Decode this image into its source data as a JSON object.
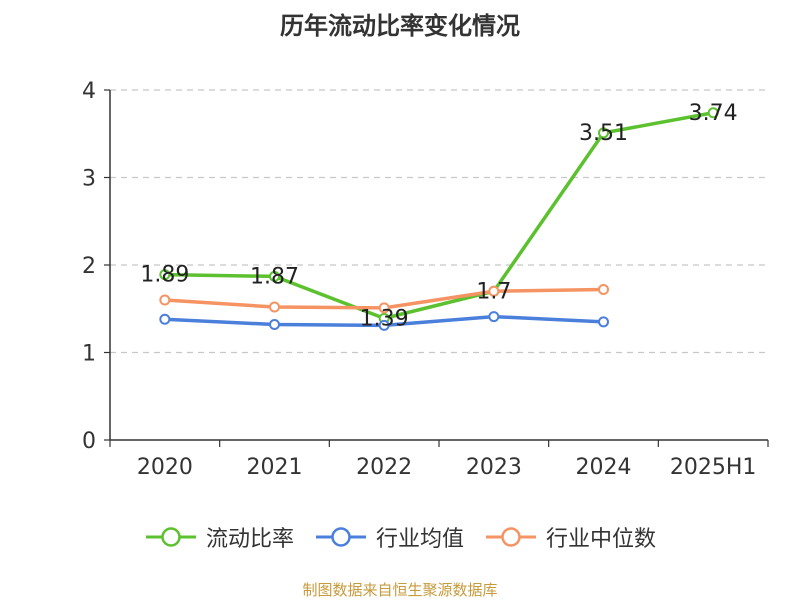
{
  "chart_data": {
    "type": "line",
    "title": "历年流动比率变化情况",
    "categories": [
      "2020",
      "2021",
      "2022",
      "2023",
      "2024",
      "2025H1"
    ],
    "ylim": [
      0,
      4
    ],
    "yticks": [
      "0",
      "1",
      "2",
      "3",
      "4"
    ],
    "grid": true,
    "legend_position": "bottom",
    "series": [
      {
        "name": "流动比率",
        "color": "#5cc12f",
        "values": [
          1.89,
          1.87,
          1.39,
          1.7,
          3.51,
          3.74
        ],
        "labels": [
          "1.89",
          "1.87",
          "1.39",
          "1.7",
          "3.51",
          "3.74"
        ]
      },
      {
        "name": "行业均值",
        "color": "#4b7fdc",
        "values": [
          1.38,
          1.32,
          1.31,
          1.41,
          1.35,
          null
        ]
      },
      {
        "name": "行业中位数",
        "color": "#f59363",
        "values": [
          1.6,
          1.52,
          1.51,
          1.7,
          1.72,
          null
        ]
      }
    ],
    "source": "制图数据来自恒生聚源数据库"
  }
}
